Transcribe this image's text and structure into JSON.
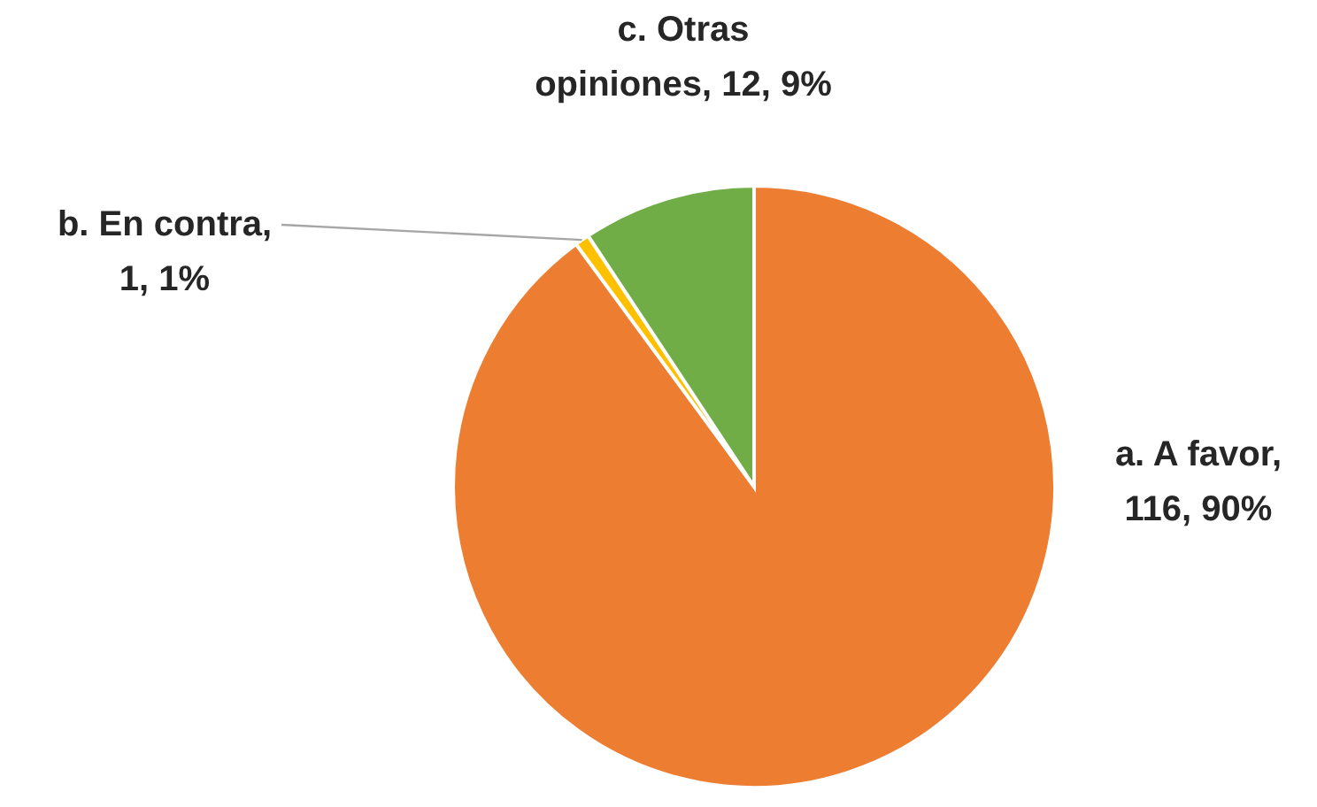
{
  "chart_data": {
    "type": "pie",
    "categories": [
      "a. A favor",
      "b. En contra",
      "c. Otras opiniones"
    ],
    "values": [
      116,
      1,
      12
    ],
    "value_labels": [
      ", 116, 90%",
      ", 1, 1%",
      ", 12, 9%"
    ],
    "colors": [
      "#ed7d31",
      "#ffc000",
      "#70ad47"
    ]
  }
}
